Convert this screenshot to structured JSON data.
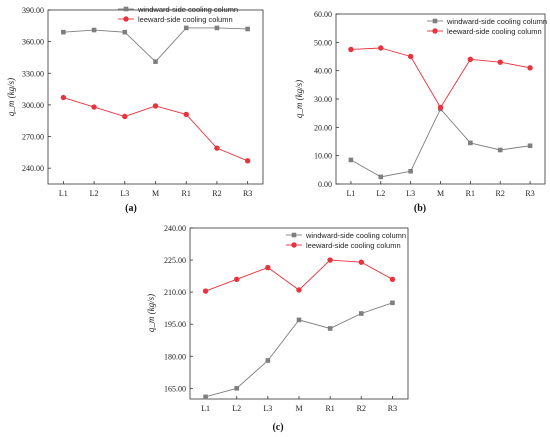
{
  "chart_data": [
    {
      "type": "line",
      "panel_label": "(a)",
      "ylabel": "q_m (kg/s)",
      "categories": [
        "L1",
        "L2",
        "L3",
        "M",
        "R1",
        "R2",
        "R3"
      ],
      "ylim": [
        225,
        390
      ],
      "yticks": [
        240,
        270,
        300,
        330,
        360,
        390
      ],
      "ytick_labels": [
        "240.00",
        "270.00",
        "300.00",
        "330.00",
        "360.00",
        "390.00"
      ],
      "legend_position": "top-center",
      "series": [
        {
          "name": "windward-side cooling column",
          "color": "#7f7f7f",
          "marker": "square",
          "values": [
            369,
            371,
            369,
            341,
            373,
            373,
            372
          ]
        },
        {
          "name": "leeward-side cooling column",
          "color": "#e8323c",
          "marker": "circle",
          "values": [
            307,
            298,
            289,
            299,
            291,
            259,
            247
          ]
        }
      ]
    },
    {
      "type": "line",
      "panel_label": "(b)",
      "ylabel": "q_m (kg/s)",
      "categories": [
        "L1",
        "L2",
        "L3",
        "M",
        "R1",
        "R2",
        "R3"
      ],
      "ylim": [
        0,
        60
      ],
      "yticks": [
        0,
        10,
        20,
        30,
        40,
        50,
        60
      ],
      "ytick_labels": [
        "0.00",
        "10.00",
        "20.00",
        "30.00",
        "40.00",
        "50.00",
        "60.00"
      ],
      "legend_position": "top-right",
      "series": [
        {
          "name": "windward-side cooling column",
          "color": "#7f7f7f",
          "marker": "square",
          "values": [
            8.5,
            2.5,
            4.5,
            26.5,
            14.5,
            12,
            13.5
          ]
        },
        {
          "name": "leeward-side cooling column",
          "color": "#e8323c",
          "marker": "circle",
          "values": [
            47.5,
            48,
            45,
            27,
            44,
            43,
            41
          ]
        }
      ]
    },
    {
      "type": "line",
      "panel_label": "(c)",
      "ylabel": "q_m (kg/s)",
      "categories": [
        "L1",
        "L2",
        "L3",
        "M",
        "R1",
        "R2",
        "R3"
      ],
      "ylim": [
        160,
        240
      ],
      "yticks": [
        165,
        180,
        195,
        210,
        225,
        240
      ],
      "ytick_labels": [
        "165.00",
        "180.00",
        "195.00",
        "210.00",
        "225.00",
        "240.00"
      ],
      "legend_position": "top-right",
      "series": [
        {
          "name": "windward-side cooling column",
          "color": "#7f7f7f",
          "marker": "square",
          "values": [
            161,
            165,
            178,
            197,
            193,
            200,
            205
          ]
        },
        {
          "name": "leeward-side cooling column",
          "color": "#e8323c",
          "marker": "circle",
          "values": [
            210.5,
            216,
            221.5,
            211,
            225,
            224,
            216
          ]
        }
      ]
    }
  ]
}
